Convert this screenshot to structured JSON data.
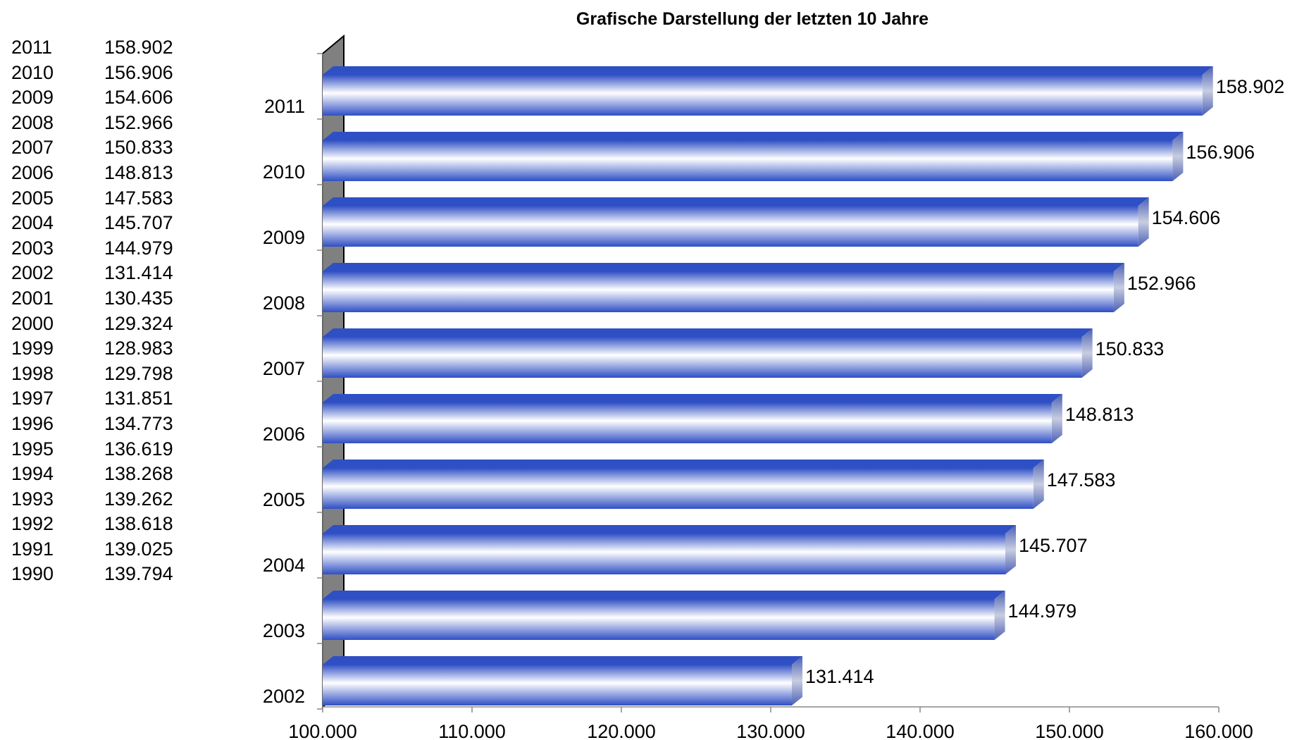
{
  "table": {
    "rows": [
      {
        "year": "2011",
        "value": "158.902"
      },
      {
        "year": "2010",
        "value": "156.906"
      },
      {
        "year": "2009",
        "value": "154.606"
      },
      {
        "year": "2008",
        "value": "152.966"
      },
      {
        "year": "2007",
        "value": "150.833"
      },
      {
        "year": "2006",
        "value": "148.813"
      },
      {
        "year": "2005",
        "value": "147.583"
      },
      {
        "year": "2004",
        "value": "145.707"
      },
      {
        "year": "2003",
        "value": "144.979"
      },
      {
        "year": "2002",
        "value": "131.414"
      },
      {
        "year": "2001",
        "value": "130.435"
      },
      {
        "year": "2000",
        "value": "129.324"
      },
      {
        "year": "1999",
        "value": "128.983"
      },
      {
        "year": "1998",
        "value": "129.798"
      },
      {
        "year": "1997",
        "value": "131.851"
      },
      {
        "year": "1996",
        "value": "134.773"
      },
      {
        "year": "1995",
        "value": "136.619"
      },
      {
        "year": "1994",
        "value": "138.268"
      },
      {
        "year": "1993",
        "value": "139.262"
      },
      {
        "year": "1992",
        "value": "138.618"
      },
      {
        "year": "1991",
        "value": "139.025"
      },
      {
        "year": "1990",
        "value": "139.794"
      }
    ]
  },
  "chart_data": {
    "type": "bar",
    "orientation": "horizontal",
    "style": "3d-cylinder-shaded",
    "title": "Grafische Darstellung der letzten 10 Jahre",
    "categories": [
      "2011",
      "2010",
      "2009",
      "2008",
      "2007",
      "2006",
      "2005",
      "2004",
      "2003",
      "2002"
    ],
    "values": [
      158902,
      156906,
      154606,
      152966,
      150833,
      148813,
      147583,
      145707,
      144979,
      131414
    ],
    "value_labels": [
      "158.902",
      "156.906",
      "154.606",
      "152.966",
      "150.833",
      "148.813",
      "147.583",
      "145.707",
      "144.979",
      "131.414"
    ],
    "xlim": [
      100000,
      160000
    ],
    "x_ticks": [
      {
        "value": 100000,
        "label": "100.000"
      },
      {
        "value": 110000,
        "label": "110.000"
      },
      {
        "value": 120000,
        "label": "120.000"
      },
      {
        "value": 130000,
        "label": "130.000"
      },
      {
        "value": 140000,
        "label": "140.000"
      },
      {
        "value": 150000,
        "label": "150.000"
      },
      {
        "value": 160000,
        "label": "160.000"
      }
    ],
    "grid": false,
    "legend": "none",
    "colors": {
      "bar_dark": "#2f4fc4",
      "bar_light": "#ffffff",
      "bar_side": "#5a6eb8",
      "wall": "#808080"
    }
  }
}
